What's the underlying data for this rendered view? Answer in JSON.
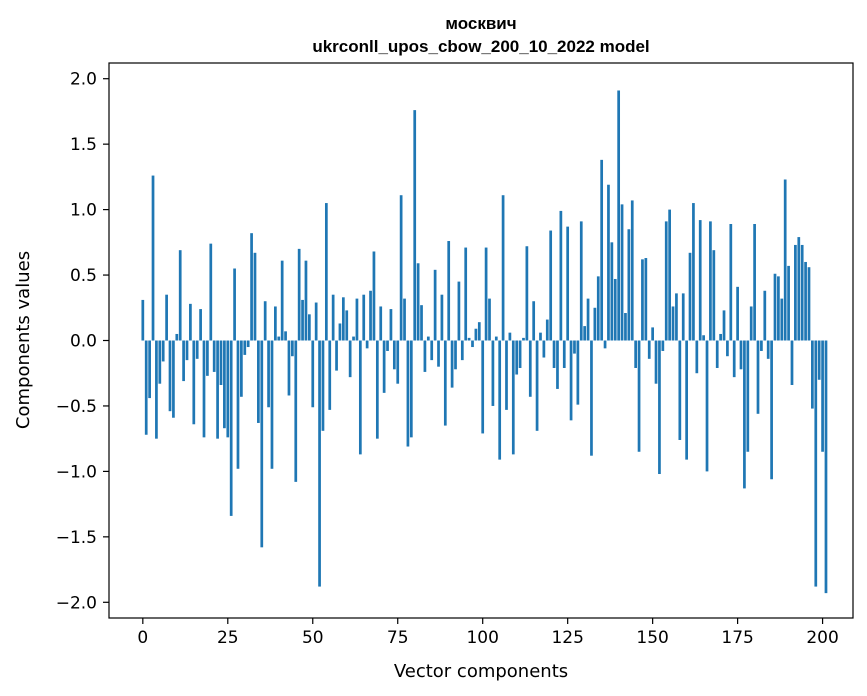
{
  "chart_data": {
    "type": "bar",
    "title_lines": [
      "москвич",
      "ukrconll_upos_cbow_200_10_2022 model"
    ],
    "xlabel": "Vector components",
    "ylabel": "Components values",
    "xlim": [
      -9.95,
      208.95
    ],
    "ylim": [
      -2.12,
      2.12
    ],
    "x_ticks": [
      0,
      25,
      50,
      75,
      100,
      125,
      150,
      175,
      200
    ],
    "x_tick_labels": [
      "0",
      "25",
      "50",
      "75",
      "100",
      "125",
      "150",
      "175",
      "200"
    ],
    "y_ticks": [
      -2.0,
      -1.5,
      -1.0,
      -0.5,
      0.0,
      0.5,
      1.0,
      1.5,
      2.0
    ],
    "y_tick_labels": [
      "−2.0",
      "−1.5",
      "−1.0",
      "−0.5",
      "0.0",
      "0.5",
      "1.0",
      "1.5",
      "2.0"
    ],
    "bar_color": "#1f77b4",
    "grid": false,
    "values": [
      0.31,
      -0.72,
      -0.44,
      1.26,
      -0.75,
      -0.33,
      -0.16,
      0.35,
      -0.54,
      -0.59,
      0.05,
      0.69,
      -0.31,
      -0.15,
      0.28,
      -0.64,
      -0.14,
      0.24,
      -0.74,
      -0.27,
      0.74,
      -0.24,
      -0.75,
      -0.34,
      -0.67,
      -0.74,
      -1.34,
      0.55,
      -0.98,
      -0.43,
      -0.11,
      -0.05,
      0.82,
      0.67,
      -0.63,
      -1.58,
      0.3,
      -0.51,
      -0.98,
      0.26,
      0.03,
      0.61,
      0.07,
      -0.42,
      -0.12,
      -1.08,
      0.7,
      0.31,
      0.61,
      0.2,
      -0.51,
      0.29,
      -1.88,
      -0.69,
      1.05,
      -0.53,
      0.35,
      -0.23,
      0.13,
      0.33,
      0.23,
      -0.28,
      0.03,
      0.32,
      -0.87,
      0.35,
      -0.06,
      0.38,
      0.68,
      -0.75,
      0.26,
      -0.4,
      -0.08,
      0.24,
      -0.22,
      -0.33,
      1.11,
      0.32,
      -0.81,
      -0.74,
      1.76,
      0.59,
      0.27,
      -0.24,
      0.03,
      -0.15,
      0.54,
      -0.2,
      0.35,
      -0.65,
      0.76,
      -0.36,
      -0.22,
      0.45,
      -0.15,
      0.71,
      0.02,
      -0.05,
      0.09,
      0.14,
      -0.71,
      0.71,
      0.32,
      -0.5,
      0.03,
      -0.91,
      1.11,
      -0.53,
      0.06,
      -0.87,
      -0.26,
      -0.21,
      0.02,
      0.72,
      -0.43,
      0.3,
      -0.69,
      0.06,
      -0.13,
      0.16,
      0.84,
      -0.21,
      -0.37,
      0.99,
      -0.21,
      0.87,
      -0.61,
      -0.1,
      -0.49,
      0.91,
      0.11,
      0.32,
      -0.88,
      0.25,
      0.49,
      1.38,
      -0.06,
      1.19,
      0.75,
      0.47,
      1.91,
      1.04,
      0.21,
      0.85,
      1.07,
      -0.21,
      -0.85,
      0.62,
      0.63,
      -0.14,
      0.1,
      -0.33,
      -1.02,
      -0.08,
      0.91,
      1.0,
      0.26,
      0.36,
      -0.76,
      0.36,
      -0.91,
      0.67,
      1.05,
      -0.25,
      0.92,
      0.04,
      -1.0,
      0.91,
      0.69,
      -0.21,
      0.05,
      0.23,
      -0.12,
      0.89,
      -0.28,
      0.41,
      -0.22,
      -1.13,
      -0.85,
      0.26,
      0.89,
      -0.56,
      -0.08,
      0.38,
      -0.14,
      -1.06,
      0.51,
      0.49,
      0.32,
      1.23,
      0.57,
      -0.34,
      0.73,
      0.79,
      0.73,
      0.6,
      0.56,
      -0.52,
      -1.88,
      -0.3,
      -0.85,
      -1.93
    ]
  }
}
